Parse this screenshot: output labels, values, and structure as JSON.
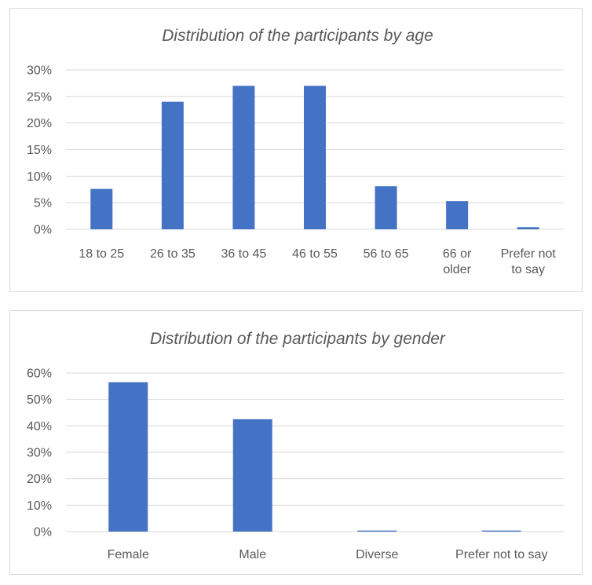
{
  "chart_data": [
    {
      "type": "bar",
      "title": "Distribution of the participants by age",
      "categories": [
        [
          "18 to 25"
        ],
        [
          "26 to 35"
        ],
        [
          "36 to 45"
        ],
        [
          "46 to 55"
        ],
        [
          "56 to 65"
        ],
        [
          "66 or",
          "older"
        ],
        [
          "Prefer not",
          "to say"
        ]
      ],
      "values": [
        7.6,
        24.0,
        27.0,
        27.0,
        8.1,
        5.3,
        0.4
      ],
      "yticks": [
        "0%",
        "5%",
        "10%",
        "15%",
        "20%",
        "25%",
        "30%"
      ],
      "ylim": [
        0,
        30
      ],
      "ystep": 5,
      "grid": true,
      "bar_color": "#4472C4"
    },
    {
      "type": "bar",
      "title": "Distribution of the participants by gender",
      "categories": [
        [
          "Female"
        ],
        [
          "Male"
        ],
        [
          "Diverse"
        ],
        [
          "Prefer not to say"
        ]
      ],
      "values": [
        56.5,
        42.5,
        0.4,
        0.4
      ],
      "yticks": [
        "0%",
        "10%",
        "20%",
        "30%",
        "40%",
        "50%",
        "60%"
      ],
      "ylim": [
        0,
        60
      ],
      "ystep": 10,
      "grid": true,
      "bar_color": "#4472C4"
    }
  ]
}
